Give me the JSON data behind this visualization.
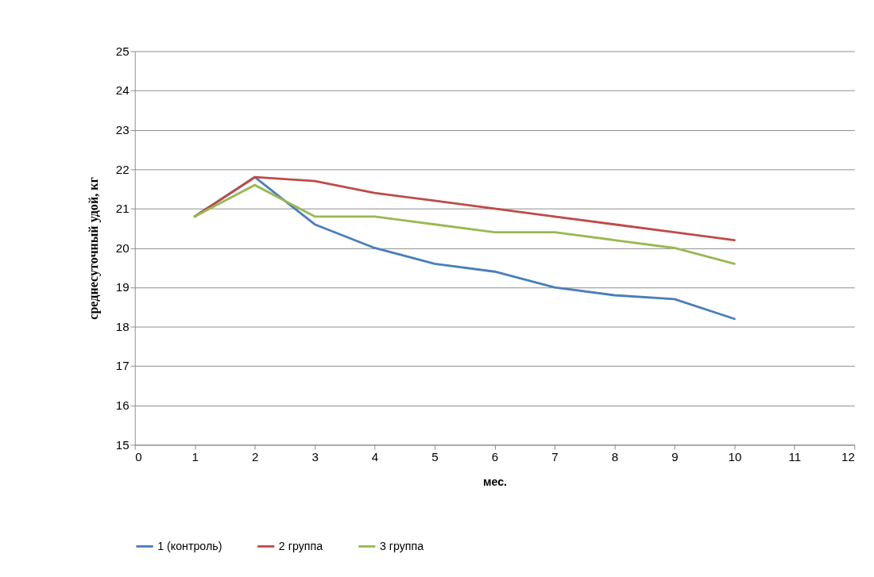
{
  "chart_data": {
    "type": "line",
    "xlabel": "мес.",
    "ylabel": "среднесуточный удой, кг",
    "x": [
      1,
      2,
      3,
      4,
      5,
      6,
      7,
      8,
      9,
      10
    ],
    "series": [
      {
        "name": "1 (контроль)",
        "color": "#4a7ebb",
        "values": [
          20.8,
          21.8,
          20.6,
          20.0,
          19.6,
          19.4,
          19.0,
          18.8,
          18.7,
          18.2
        ]
      },
      {
        "name": "2 группа",
        "color": "#be4b48",
        "values": [
          20.8,
          21.8,
          21.7,
          21.4,
          21.2,
          21.0,
          20.8,
          20.6,
          20.4,
          20.2
        ]
      },
      {
        "name": "3 группа",
        "color": "#98b954",
        "values": [
          20.8,
          21.6,
          20.8,
          20.8,
          20.6,
          20.4,
          20.4,
          20.2,
          20.0,
          19.6
        ]
      }
    ],
    "xlim": [
      0,
      12
    ],
    "xticks": [
      0,
      1,
      2,
      3,
      4,
      5,
      6,
      7,
      8,
      9,
      10,
      11,
      12
    ],
    "ylim": [
      15,
      25
    ],
    "yticks": [
      15,
      16,
      17,
      18,
      19,
      20,
      21,
      22,
      23,
      24,
      25
    ],
    "grid": "y",
    "legend": "bottom",
    "marker": "none",
    "line_style": "solid"
  }
}
